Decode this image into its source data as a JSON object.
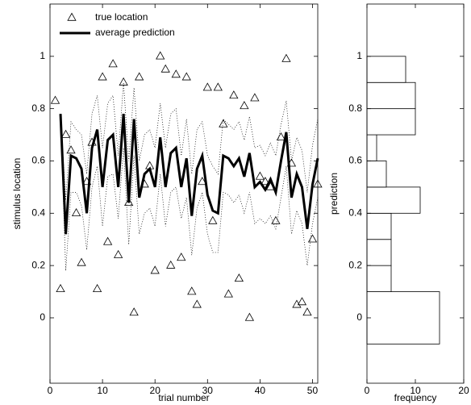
{
  "chart_data": [
    {
      "type": "line",
      "xlabel": "trial number",
      "ylabel": "stimulus location",
      "x": [
        1,
        2,
        3,
        4,
        5,
        6,
        7,
        8,
        9,
        10,
        11,
        12,
        13,
        14,
        15,
        16,
        17,
        18,
        19,
        20,
        21,
        22,
        23,
        24,
        25,
        26,
        27,
        28,
        29,
        30,
        31,
        32,
        33,
        34,
        35,
        36,
        37,
        38,
        39,
        40,
        41,
        42,
        43,
        44,
        45,
        46,
        47,
        48,
        49,
        50,
        51
      ],
      "xlim": [
        0,
        51
      ],
      "xticks": [
        0,
        10,
        20,
        30,
        40,
        50
      ],
      "ylim": [
        -0.25,
        1.2
      ],
      "yticks": [
        0,
        0.2,
        0.4,
        0.6,
        0.8,
        1
      ],
      "legend": "upper left",
      "series": [
        {
          "name": "true location",
          "color": "#000000",
          "marker": "triangle",
          "linewidth": 0,
          "values": [
            0.83,
            0.11,
            0.7,
            0.64,
            0.4,
            0.21,
            0.52,
            0.67,
            0.11,
            0.92,
            0.29,
            0.97,
            0.24,
            0.9,
            0.44,
            0.02,
            0.92,
            0.51,
            0.58,
            0.18,
            1.0,
            0.95,
            0.2,
            0.93,
            0.23,
            0.92,
            0.1,
            0.05,
            0.52,
            0.88,
            0.37,
            0.88,
            0.74,
            0.09,
            0.85,
            0.15,
            0.81,
            0.0,
            0.84,
            0.54,
            0.52,
            0.5,
            0.37,
            0.69,
            0.99,
            0.59,
            0.05,
            0.06,
            0.02,
            0.3,
            0.51
          ]
        },
        {
          "name": "average prediction",
          "color": "#000000",
          "linewidth": 3,
          "values": [
            null,
            0.78,
            0.32,
            0.62,
            0.61,
            0.57,
            0.4,
            0.65,
            0.72,
            0.5,
            0.68,
            0.7,
            0.5,
            0.78,
            0.44,
            0.76,
            0.46,
            0.55,
            0.57,
            0.5,
            0.69,
            0.5,
            0.63,
            0.65,
            0.5,
            0.61,
            0.39,
            0.57,
            0.62,
            0.47,
            0.41,
            0.4,
            0.62,
            0.61,
            0.58,
            0.61,
            0.54,
            0.63,
            0.5,
            0.52,
            0.49,
            0.53,
            0.48,
            0.6,
            0.71,
            0.46,
            0.55,
            0.5,
            0.34,
            0.51,
            0.61
          ]
        },
        {
          "color": "#000000",
          "linewidth": 0.7,
          "style": "dotted",
          "values": [
            null,
            0.78,
            0.45,
            0.75,
            0.72,
            0.7,
            0.55,
            0.78,
            0.85,
            0.65,
            0.82,
            0.85,
            0.62,
            0.9,
            0.6,
            0.88,
            0.6,
            0.7,
            0.72,
            0.65,
            0.82,
            0.65,
            0.78,
            0.8,
            0.62,
            0.76,
            0.55,
            0.72,
            0.75,
            0.62,
            0.58,
            0.55,
            0.76,
            0.74,
            0.72,
            0.75,
            0.68,
            0.77,
            0.65,
            0.66,
            0.62,
            0.67,
            0.62,
            0.74,
            0.83,
            0.6,
            0.69,
            0.64,
            0.48,
            0.66,
            0.76
          ]
        },
        {
          "color": "#000000",
          "linewidth": 0.7,
          "style": "dotted",
          "values": [
            null,
            0.78,
            0.18,
            0.48,
            0.48,
            0.43,
            0.26,
            0.5,
            0.58,
            0.35,
            0.54,
            0.55,
            0.38,
            0.65,
            0.28,
            0.62,
            0.32,
            0.4,
            0.42,
            0.35,
            0.55,
            0.35,
            0.48,
            0.5,
            0.38,
            0.46,
            0.24,
            0.42,
            0.48,
            0.32,
            0.25,
            0.25,
            0.48,
            0.47,
            0.44,
            0.47,
            0.4,
            0.48,
            0.36,
            0.38,
            0.36,
            0.39,
            0.34,
            0.46,
            0.58,
            0.32,
            0.41,
            0.36,
            0.2,
            0.36,
            0.46
          ]
        }
      ]
    },
    {
      "type": "histogram",
      "orientation": "horizontal",
      "xlabel": "frequency",
      "ylabel": "prediction",
      "bins": [
        -0.1,
        0.1,
        0.2,
        0.3,
        0.4,
        0.5,
        0.6,
        0.7,
        0.8,
        0.9,
        1.0
      ],
      "values": [
        15,
        5,
        5,
        5,
        11,
        4,
        2,
        10,
        10,
        8
      ],
      "color": "#ffffff",
      "xlim": [
        0,
        20
      ],
      "xticks": [
        0,
        10,
        20
      ],
      "ylim": [
        -0.25,
        1.2
      ],
      "yticks": [
        0,
        0.2,
        0.4,
        0.6,
        0.8,
        1
      ]
    }
  ]
}
